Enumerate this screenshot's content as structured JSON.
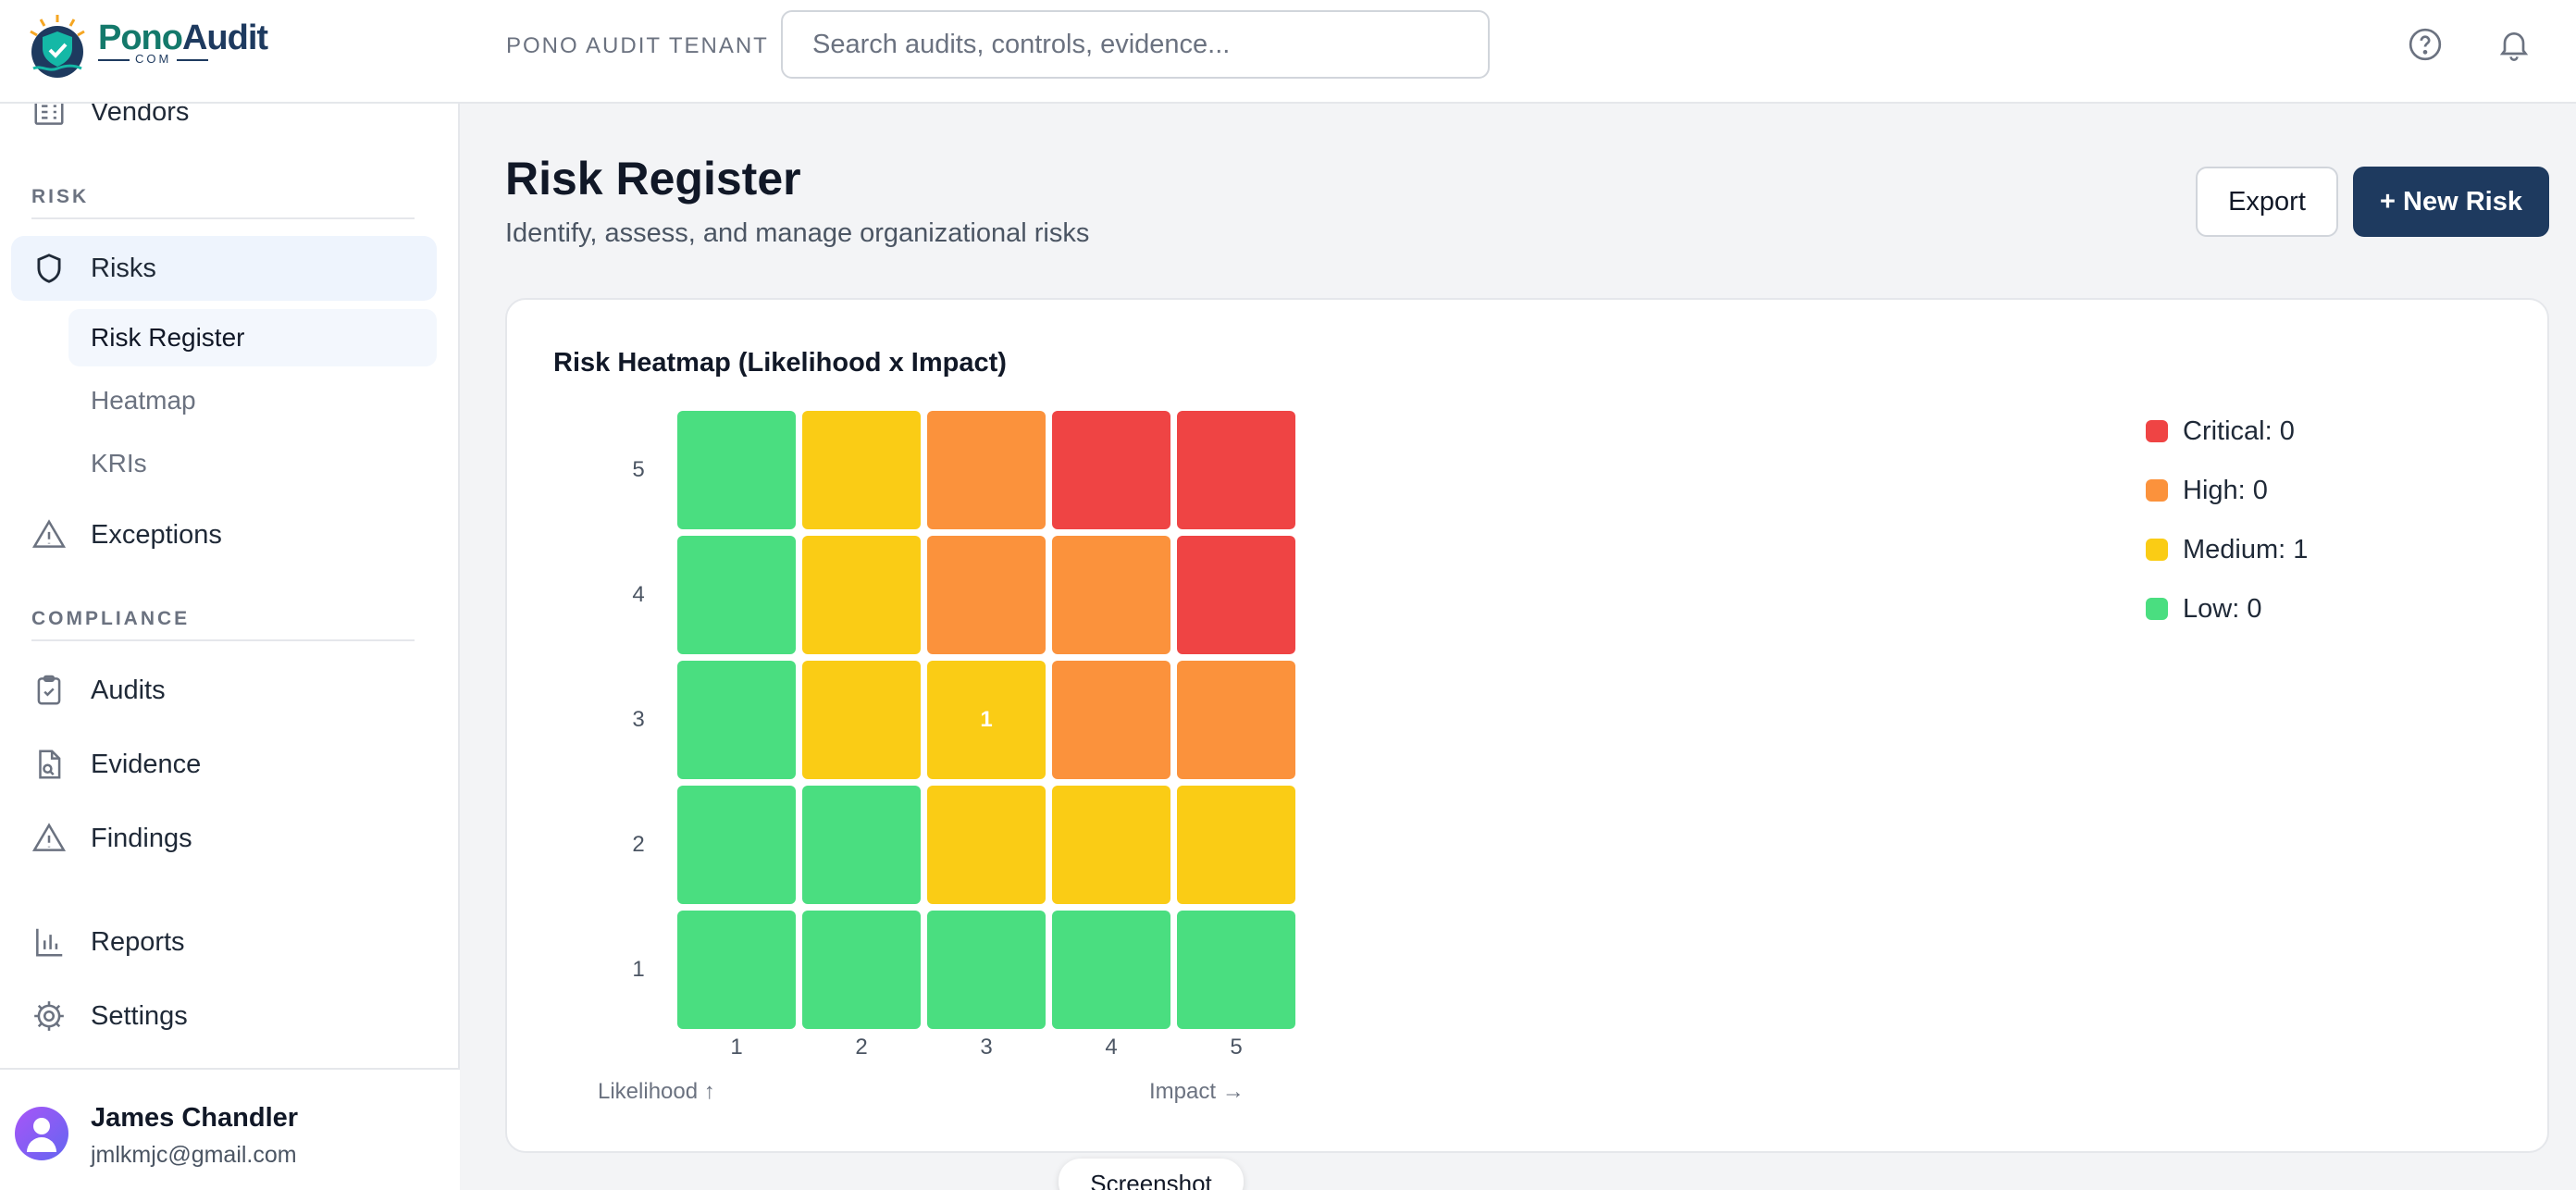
{
  "brand": {
    "name_part1": "Pono",
    "name_part2": "Audit",
    "sub": "COM"
  },
  "sidebar": {
    "vendors_label": "Vendors",
    "risk_section": "RISK",
    "risks_label": "Risks",
    "risk_subitems": [
      "Risk Register",
      "Heatmap",
      "KRIs"
    ],
    "exceptions_label": "Exceptions",
    "compliance_section": "COMPLIANCE",
    "audits_label": "Audits",
    "evidence_label": "Evidence",
    "findings_label": "Findings",
    "reports_label": "Reports",
    "settings_label": "Settings"
  },
  "user": {
    "name": "James Chandler",
    "email": "jmlkmjc@gmail.com"
  },
  "topbar": {
    "tenant": "PONO AUDIT TENANT",
    "search_placeholder": "Search audits, controls, evidence...",
    "help_icon": "help-circle-icon",
    "bell_icon": "bell-icon"
  },
  "page": {
    "title": "Risk Register",
    "subtitle": "Identify, assess, and manage organizational risks",
    "export_label": "Export",
    "new_risk_label": "+ New Risk"
  },
  "colors": {
    "low": "#4ade80",
    "medium": "#facc15",
    "high": "#fb923c",
    "critical": "#ef4444",
    "primary": "#1e3a5f"
  },
  "chart_data": {
    "type": "heatmap",
    "title": "Risk Heatmap (Likelihood x Impact)",
    "x_ticks": [
      "1",
      "2",
      "3",
      "4",
      "5"
    ],
    "y_ticks": [
      "5",
      "4",
      "3",
      "2",
      "1"
    ],
    "x_caption": "Impact →",
    "y_caption": "Likelihood ↑",
    "grid_rows_top_to_bottom": [
      [
        "low",
        "medium",
        "high",
        "critical",
        "critical"
      ],
      [
        "low",
        "medium",
        "high",
        "high",
        "critical"
      ],
      [
        "low",
        "medium",
        "medium",
        "high",
        "high"
      ],
      [
        "low",
        "low",
        "medium",
        "medium",
        "medium"
      ],
      [
        "low",
        "low",
        "low",
        "low",
        "low"
      ]
    ],
    "counts_rows_top_to_bottom": [
      [
        "",
        "",
        "",
        "",
        ""
      ],
      [
        "",
        "",
        "",
        "",
        ""
      ],
      [
        "",
        "",
        "1",
        "",
        ""
      ],
      [
        "",
        "",
        "",
        "",
        ""
      ],
      [
        "",
        "",
        "",
        "",
        ""
      ]
    ],
    "legend": [
      {
        "text": "Critical: 0",
        "level": "critical"
      },
      {
        "text": "High: 0",
        "level": "high"
      },
      {
        "text": "Medium: 1",
        "level": "medium"
      },
      {
        "text": "Low: 0",
        "level": "low"
      }
    ]
  },
  "tooltip": "Screenshot"
}
